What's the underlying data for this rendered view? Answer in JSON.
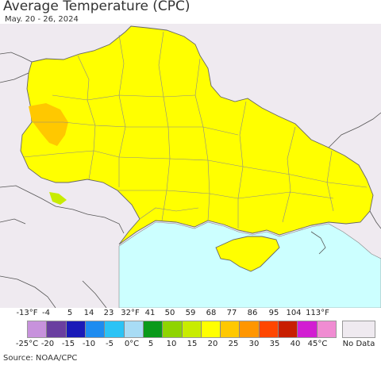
{
  "title": "Average Temperature (CPC)",
  "subtitle": "May. 20 - 26, 2024",
  "source": "Source: NOAA/CPC",
  "legend": {
    "fahrenheit_labels": [
      "-13°F",
      "-4",
      "5",
      "14",
      "23",
      "32°F",
      "41",
      "50",
      "59",
      "68",
      "77",
      "86",
      "95",
      "104",
      "113°F"
    ],
    "celsius_labels": [
      "-25°C",
      "-20",
      "-15",
      "-10",
      "-5",
      "0°C",
      "5",
      "10",
      "15",
      "20",
      "25",
      "30",
      "35",
      "40",
      "45°C"
    ],
    "colors": [
      "#c792dc",
      "#6a3fa0",
      "#1a1ab8",
      "#1e8cf0",
      "#2bc3f5",
      "#a8dcf5",
      "#0a9a1a",
      "#8fd400",
      "#c8ec00",
      "#ffff00",
      "#ffc800",
      "#ff9600",
      "#ff4600",
      "#c81e00",
      "#d21ed2",
      "#f08cd2"
    ],
    "no_data_label": "No Data",
    "no_data_color": "#efeaf0"
  },
  "map": {
    "background_color": "#efeaf0",
    "sea_color": "#ccffff",
    "dominant_color": "#ffff00",
    "warm_patch_color": "#ffc800",
    "cool_patch_color": "#c8ec00"
  }
}
